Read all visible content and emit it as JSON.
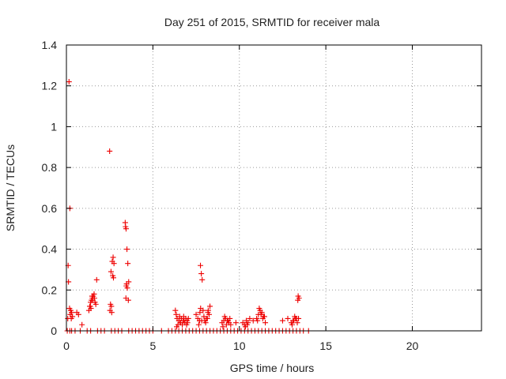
{
  "chart_data": {
    "type": "scatter",
    "title": "Day 251 of 2015, SRMTID for receiver mala",
    "xlabel": "GPS time / hours",
    "ylabel": "SRMTID / TECUs",
    "xlim": [
      0,
      24
    ],
    "ylim": [
      0,
      1.4
    ],
    "xticks": [
      0,
      5,
      10,
      15,
      20
    ],
    "yticks": [
      0,
      0.2,
      0.4,
      0.6,
      0.8,
      1,
      1.2,
      1.4
    ],
    "xtick_labels": [
      "0",
      "5",
      "10",
      "15",
      "20"
    ],
    "ytick_labels": [
      "0",
      "0.2",
      "0.4",
      "0.6",
      "0.8",
      "1",
      "1.2",
      "1.4"
    ],
    "grid": true,
    "marker": "+",
    "marker_color": "#ee0000",
    "series": [
      {
        "x": [
          0.15,
          0.2,
          0.1,
          0.12,
          0.18,
          0.25,
          0.3,
          0.22,
          0.35,
          0.08,
          0.28,
          0.6,
          0.7,
          0.9,
          1.3,
          1.35,
          1.4,
          1.45,
          1.5,
          1.55,
          1.6,
          1.65,
          1.7,
          1.42,
          1.52,
          1.62,
          1.38,
          1.75,
          1.48,
          2.5,
          2.55,
          2.6,
          2.62,
          2.65,
          2.7,
          2.75,
          2.58,
          2.52,
          2.68,
          2.72,
          3.4,
          3.42,
          3.45,
          3.5,
          3.55,
          3.6,
          3.48,
          3.52,
          3.44,
          3.58,
          3.46,
          6.3,
          6.35,
          6.4,
          6.5,
          6.6,
          6.7,
          6.8,
          6.9,
          7.0,
          6.45,
          6.55,
          6.65,
          6.75,
          6.85,
          6.95,
          7.05,
          6.38,
          6.58,
          6.78,
          6.98,
          7.5,
          7.6,
          7.7,
          7.75,
          7.8,
          7.85,
          7.9,
          8.0,
          8.1,
          8.2,
          8.25,
          8.3,
          7.72,
          7.76,
          7.95,
          8.05,
          8.15,
          7.65,
          7.82,
          8.18,
          9.0,
          9.1,
          9.2,
          9.3,
          9.4,
          9.5,
          9.15,
          9.25,
          9.35,
          9.05,
          9.45,
          9.8,
          10.2,
          10.3,
          10.4,
          10.5,
          10.6,
          10.8,
          10.35,
          10.45,
          11.0,
          11.1,
          11.2,
          11.3,
          11.4,
          11.15,
          11.25,
          11.35,
          11.05,
          11.45,
          11.5,
          12.5,
          12.8,
          13.0,
          13.1,
          13.2,
          13.3,
          13.4,
          13.45,
          13.15,
          13.25,
          13.35,
          13.05,
          13.38,
          13.42
        ],
        "y": [
          1.22,
          0.6,
          0.32,
          0.24,
          0.11,
          0.1,
          0.09,
          0.08,
          0.07,
          0.06,
          0.06,
          0.09,
          0.08,
          0.03,
          0.1,
          0.12,
          0.14,
          0.15,
          0.16,
          0.17,
          0.18,
          0.14,
          0.13,
          0.11,
          0.15,
          0.16,
          0.12,
          0.25,
          0.17,
          0.88,
          0.13,
          0.12,
          0.09,
          0.34,
          0.36,
          0.33,
          0.29,
          0.1,
          0.27,
          0.26,
          0.53,
          0.51,
          0.5,
          0.4,
          0.33,
          0.24,
          0.23,
          0.21,
          0.16,
          0.15,
          0.22,
          0.1,
          0.08,
          0.06,
          0.05,
          0.04,
          0.03,
          0.05,
          0.06,
          0.04,
          0.03,
          0.07,
          0.06,
          0.05,
          0.04,
          0.03,
          0.06,
          0.02,
          0.04,
          0.07,
          0.05,
          0.08,
          0.06,
          0.05,
          0.32,
          0.28,
          0.25,
          0.1,
          0.05,
          0.06,
          0.1,
          0.08,
          0.12,
          0.09,
          0.11,
          0.07,
          0.04,
          0.06,
          0.03,
          0.05,
          0.09,
          0.04,
          0.05,
          0.06,
          0.05,
          0.04,
          0.03,
          0.07,
          0.03,
          0.05,
          0.02,
          0.06,
          0.04,
          0.04,
          0.03,
          0.05,
          0.04,
          0.06,
          0.05,
          0.02,
          0.03,
          0.06,
          0.08,
          0.1,
          0.09,
          0.07,
          0.11,
          0.08,
          0.06,
          0.05,
          0.07,
          0.04,
          0.05,
          0.06,
          0.04,
          0.05,
          0.07,
          0.06,
          0.17,
          0.16,
          0.05,
          0.06,
          0.04,
          0.03,
          0.15,
          0.06
        ]
      },
      {
        "x": [
          0.05,
          0.2,
          0.3,
          0.5,
          0.8,
          1.2,
          1.4,
          1.8,
          2.0,
          2.2,
          2.6,
          2.8,
          3.0,
          3.2,
          3.6,
          3.8,
          4.0,
          4.2,
          4.4,
          4.6,
          4.8,
          5.0,
          5.5,
          5.9,
          6.1,
          6.3,
          6.5,
          6.7,
          6.9,
          7.1,
          7.3,
          7.5,
          7.7,
          7.9,
          8.1,
          8.3,
          8.5,
          8.7,
          8.9,
          9.1,
          9.3,
          9.5,
          9.7,
          9.9,
          10.1,
          10.3,
          10.5,
          10.7,
          10.9,
          11.1,
          11.3,
          11.5,
          11.7,
          11.9,
          12.1,
          12.3,
          12.5,
          12.7,
          12.9,
          13.1,
          13.3,
          13.5,
          13.7,
          14.0
        ],
        "y": [
          0,
          0,
          0,
          0,
          0,
          0,
          0,
          0,
          0,
          0,
          0,
          0,
          0,
          0,
          0,
          0,
          0,
          0,
          0,
          0,
          0,
          0,
          0,
          0,
          0,
          0,
          0,
          0,
          0,
          0,
          0,
          0,
          0,
          0,
          0,
          0,
          0,
          0,
          0,
          0,
          0,
          0,
          0,
          0,
          0,
          0,
          0,
          0,
          0,
          0,
          0,
          0,
          0,
          0,
          0,
          0,
          0,
          0,
          0,
          0,
          0,
          0,
          0,
          0
        ]
      }
    ]
  }
}
